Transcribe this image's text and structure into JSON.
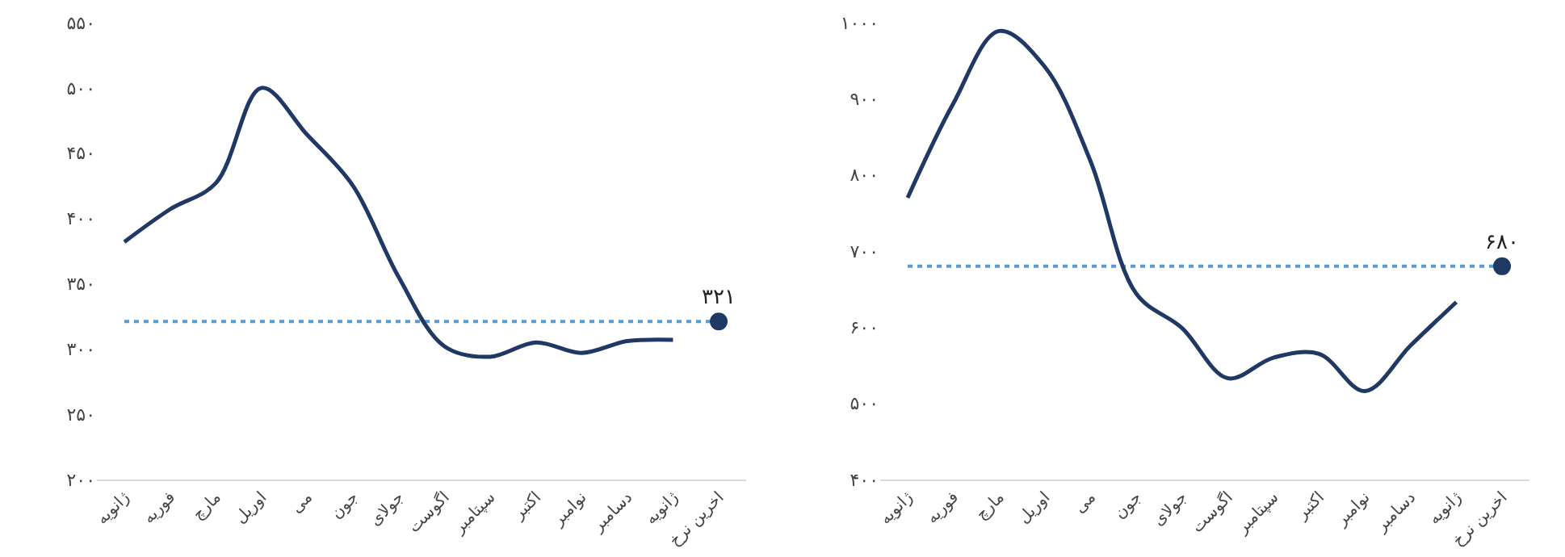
{
  "chart_data": [
    {
      "type": "line",
      "categories": [
        "ژانویه",
        "فوریه",
        "مارچ",
        "اوریل",
        "می",
        "جون",
        "جولای",
        "اگوست",
        "سپتامبر",
        "اکتبر",
        "نوامبر",
        "دسامبر",
        "ژانویه",
        "اخرین نرخ"
      ],
      "series": [
        {
          "color": "#1f3864",
          "values": [
            382,
            407,
            427,
            500,
            464,
            425,
            355,
            302,
            294,
            305,
            297,
            306,
            307,
            null
          ]
        },
        {
          "type": "scatter",
          "marker": "circle",
          "color": "#1f3864",
          "values": [
            null,
            null,
            null,
            null,
            null,
            null,
            null,
            null,
            null,
            null,
            null,
            null,
            null,
            321
          ],
          "value_labels": [
            null,
            null,
            null,
            null,
            null,
            null,
            null,
            null,
            null,
            null,
            null,
            null,
            null,
            "۳۲۱"
          ]
        }
      ],
      "ylim": [
        200,
        550
      ],
      "yticks": [
        {
          "value": 200,
          "label": "۲۰۰"
        },
        {
          "value": 250,
          "label": "۲۵۰"
        },
        {
          "value": 300,
          "label": "۳۰۰"
        },
        {
          "value": 350,
          "label": "۳۵۰"
        },
        {
          "value": 400,
          "label": "۴۰۰"
        },
        {
          "value": 450,
          "label": "۴۵۰"
        },
        {
          "value": 500,
          "label": "۵۰۰"
        },
        {
          "value": 550,
          "label": "۵۵۰"
        }
      ],
      "ref_lines": [
        {
          "axis": "y",
          "value": 321,
          "color": "#5b9bd5",
          "line_style": "dotted"
        }
      ],
      "grid": false,
      "line_style": "solid"
    },
    {
      "type": "line",
      "categories": [
        "ژانویه",
        "فوریه",
        "مارچ",
        "اوریل",
        "می",
        "جون",
        "جولای",
        "اگوست",
        "سپتامبر",
        "اکتبر",
        "نوامبر",
        "دسامبر",
        "ژانویه",
        "اخرین نرخ"
      ],
      "series": [
        {
          "color": "#1f3864",
          "values": [
            770,
            894,
            989,
            942,
            818,
            644,
            599,
            533,
            560,
            565,
            516,
            576,
            633,
            null
          ]
        },
        {
          "type": "scatter",
          "marker": "circle",
          "color": "#1f3864",
          "values": [
            null,
            null,
            null,
            null,
            null,
            null,
            null,
            null,
            null,
            null,
            null,
            null,
            null,
            680
          ],
          "value_labels": [
            null,
            null,
            null,
            null,
            null,
            null,
            null,
            null,
            null,
            null,
            null,
            null,
            null,
            "۶۸۰"
          ]
        }
      ],
      "ylim": [
        400,
        1000
      ],
      "yticks": [
        {
          "value": 400,
          "label": "۴۰۰"
        },
        {
          "value": 500,
          "label": "۵۰۰"
        },
        {
          "value": 600,
          "label": "۶۰۰"
        },
        {
          "value": 700,
          "label": "۷۰۰"
        },
        {
          "value": 800,
          "label": "۸۰۰"
        },
        {
          "value": 900,
          "label": "۹۰۰"
        },
        {
          "value": 1000,
          "label": "۱۰۰۰"
        }
      ],
      "ref_lines": [
        {
          "axis": "y",
          "value": 680,
          "color": "#5b9bd5",
          "line_style": "dotted"
        }
      ],
      "grid": false,
      "line_style": "solid"
    }
  ]
}
